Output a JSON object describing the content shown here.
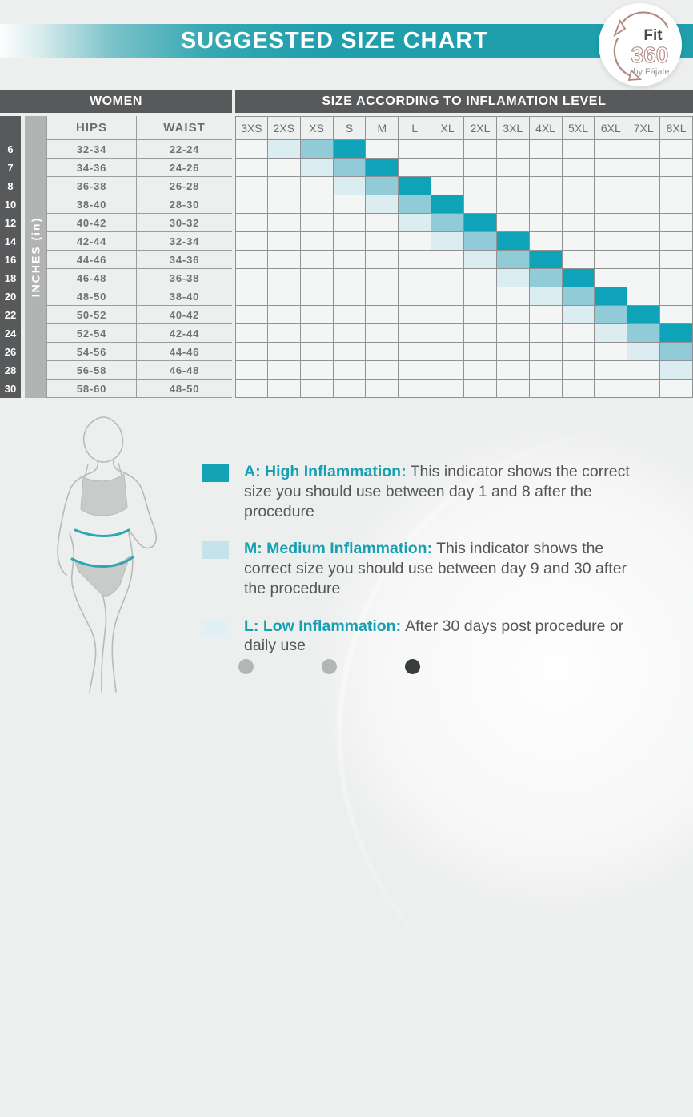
{
  "header": {
    "title": "SUGGESTED SIZE CHART"
  },
  "logo": {
    "line1": "Fit",
    "line2": "360",
    "line3": "by Fájate"
  },
  "table": {
    "group_headers": {
      "women": "WOMEN",
      "sizes": "SIZE ACCORDING TO INFLAMATION LEVEL"
    },
    "axis_label": "INCHES (in)",
    "hips_header": "HIPS",
    "waist_header": "WAIST"
  },
  "chart_data": {
    "type": "heatmap",
    "title": "SUGGESTED SIZE CHART",
    "x_categories": [
      "3XS",
      "2XS",
      "XS",
      "S",
      "M",
      "L",
      "XL",
      "2XL",
      "3XL",
      "4XL",
      "5XL",
      "6XL",
      "7XL",
      "8XL"
    ],
    "y_categories": [
      "6",
      "7",
      "8",
      "10",
      "12",
      "14",
      "16",
      "18",
      "20",
      "22",
      "24",
      "26",
      "28",
      "30"
    ],
    "y_axis_label": "INCHES (in)",
    "levels_legend": {
      "A": "High Inflammation",
      "M": "Medium Inflammation",
      "L": "Low Inflammation"
    },
    "rows": [
      {
        "inches": "6",
        "hips": "32-34",
        "waist": "22-24",
        "levels": {
          "2XS": "L",
          "XS": "M",
          "S": "A"
        }
      },
      {
        "inches": "7",
        "hips": "34-36",
        "waist": "24-26",
        "levels": {
          "XS": "L",
          "S": "M",
          "M": "A"
        }
      },
      {
        "inches": "8",
        "hips": "36-38",
        "waist": "26-28",
        "levels": {
          "S": "L",
          "M": "M",
          "L": "A"
        }
      },
      {
        "inches": "10",
        "hips": "38-40",
        "waist": "28-30",
        "levels": {
          "M": "L",
          "L": "M",
          "XL": "A"
        }
      },
      {
        "inches": "12",
        "hips": "40-42",
        "waist": "30-32",
        "levels": {
          "L": "L",
          "XL": "M",
          "2XL": "A"
        }
      },
      {
        "inches": "14",
        "hips": "42-44",
        "waist": "32-34",
        "levels": {
          "XL": "L",
          "2XL": "M",
          "3XL": "A"
        }
      },
      {
        "inches": "16",
        "hips": "44-46",
        "waist": "34-36",
        "levels": {
          "2XL": "L",
          "3XL": "M",
          "4XL": "A"
        }
      },
      {
        "inches": "18",
        "hips": "46-48",
        "waist": "36-38",
        "levels": {
          "3XL": "L",
          "4XL": "M",
          "5XL": "A"
        }
      },
      {
        "inches": "20",
        "hips": "48-50",
        "waist": "38-40",
        "levels": {
          "4XL": "L",
          "5XL": "M",
          "6XL": "A"
        }
      },
      {
        "inches": "22",
        "hips": "50-52",
        "waist": "40-42",
        "levels": {
          "5XL": "L",
          "6XL": "M",
          "7XL": "A"
        }
      },
      {
        "inches": "24",
        "hips": "52-54",
        "waist": "42-44",
        "levels": {
          "6XL": "L",
          "7XL": "M",
          "8XL": "A"
        }
      },
      {
        "inches": "26",
        "hips": "54-56",
        "waist": "44-46",
        "levels": {
          "7XL": "L",
          "8XL": "M"
        }
      },
      {
        "inches": "28",
        "hips": "56-58",
        "waist": "46-48",
        "levels": {
          "8XL": "L"
        }
      },
      {
        "inches": "30",
        "hips": "58-60",
        "waist": "48-50",
        "levels": {}
      }
    ]
  },
  "legend": {
    "items": [
      {
        "label": "A: High Inflammation:",
        "text": "This indicator shows the correct size you should use between day 1 and 8 after the procedure"
      },
      {
        "label": "M: Medium Inflammation:",
        "text": "This indicator shows the correct size you should use between day 9 and 30 after the procedure"
      },
      {
        "label": "L: Low Inflammation:",
        "text": "After 30 days post procedure or daily use"
      }
    ]
  },
  "carousel": {
    "dots": 3,
    "active_index": 2
  },
  "colors": {
    "teal": "#1e9fab",
    "bar_gray": "#58595b",
    "grid_line": "#8f9192",
    "cell_bg": "#f3f6f5",
    "level_high": "#0ea3b8",
    "level_medium": "#90cbd7",
    "level_low": "#dbedf1",
    "legend_high": "#14a3b6",
    "legend_medium": "#c5e3ea",
    "legend_low": "#e0f0f4",
    "legend_teal": "#16a0b2",
    "logo_accent": "#b28880",
    "dot_inactive": "#b4b6b5",
    "dot_active": "#3a3b3c"
  }
}
